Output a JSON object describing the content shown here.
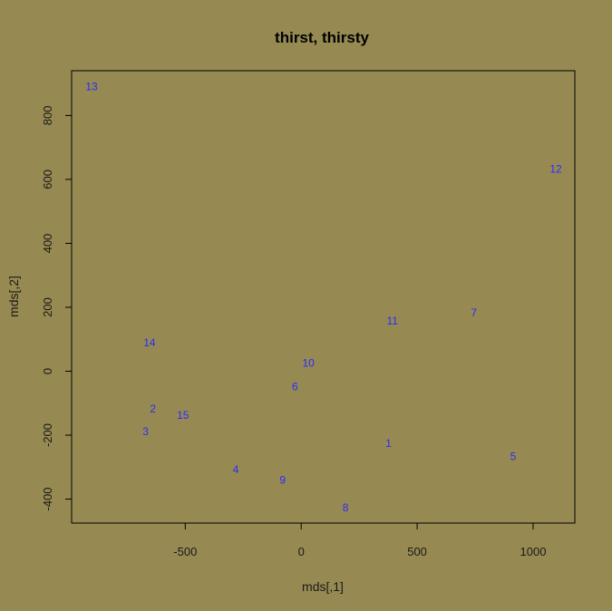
{
  "colors": {
    "background": "#968a52",
    "point_labels": "#2a2aff",
    "axes": "#000000"
  },
  "chart_data": {
    "type": "scatter",
    "title": "thirst, thirsty",
    "xlabel": "mds[,1]",
    "ylabel": "mds[,2]",
    "xlim": [
      -990,
      1180
    ],
    "ylim": [
      -475,
      940
    ],
    "xticks": [
      -500,
      0,
      500,
      1000
    ],
    "xtick_labels": [
      "-500",
      "0",
      "500",
      "1000"
    ],
    "yticks": [
      -400,
      -200,
      0,
      200,
      400,
      600,
      800
    ],
    "ytick_labels": [
      "-400",
      "-200",
      "0",
      "200",
      "400",
      "600",
      "800"
    ],
    "grid": false,
    "legend": null,
    "points": [
      {
        "label": "1",
        "x": 377,
        "y": -225
      },
      {
        "label": "2",
        "x": -639,
        "y": -118
      },
      {
        "label": "3",
        "x": -671,
        "y": -188
      },
      {
        "label": "4",
        "x": -282,
        "y": -307
      },
      {
        "label": "5",
        "x": 914,
        "y": -267
      },
      {
        "label": "6",
        "x": -27,
        "y": -48
      },
      {
        "label": "7",
        "x": 745,
        "y": 183
      },
      {
        "label": "8",
        "x": 191,
        "y": -427
      },
      {
        "label": "9",
        "x": -80,
        "y": -340
      },
      {
        "label": "10",
        "x": 31,
        "y": 25
      },
      {
        "label": "11",
        "x": 393,
        "y": 158
      },
      {
        "label": "12",
        "x": 1098,
        "y": 632
      },
      {
        "label": "13",
        "x": -904,
        "y": 890
      },
      {
        "label": "14",
        "x": -654,
        "y": 89
      },
      {
        "label": "15",
        "x": -510,
        "y": -137
      }
    ]
  }
}
